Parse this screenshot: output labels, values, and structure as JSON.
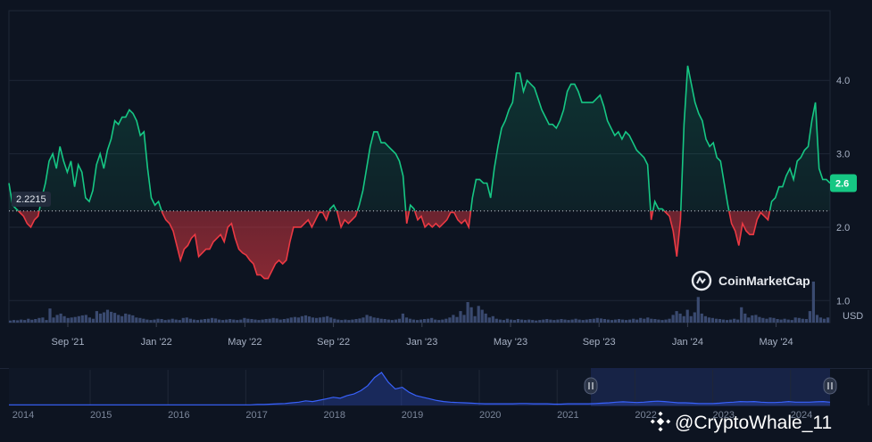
{
  "watermark": "CoinMarketCap",
  "credit": "@CryptoWhale_11",
  "colors": {
    "background": "#0d1421",
    "up": "#16c784",
    "down": "#ea3943",
    "volume": "#3a4a70",
    "navigator_line": "#3861fb"
  },
  "chart_data": {
    "type": "line",
    "title": "",
    "unit_label": "USD",
    "current_price_label": "2.6",
    "baseline": 2.2215,
    "baseline_label": "2.2215",
    "ylim": [
      0.7,
      4.95
    ],
    "y_ticks": [
      1.0,
      2.0,
      3.0,
      4.0
    ],
    "y_tick_labels": [
      "1.0",
      "2.0",
      "3.0",
      "4.0"
    ],
    "x_ticks": [
      "Sep '21",
      "Jan '22",
      "May '22",
      "Sep '22",
      "Jan '23",
      "May '23",
      "Sep '23",
      "Jan '24",
      "May '24"
    ],
    "grid": true,
    "series": [
      {
        "values": [
          2.6,
          2.3,
          2.25,
          2.2,
          2.15,
          2.05,
          2.0,
          2.1,
          2.15,
          2.4,
          2.6,
          2.9,
          3.0,
          2.8,
          3.1,
          2.9,
          2.75,
          2.9,
          2.55,
          2.85,
          2.75,
          2.4,
          2.35,
          2.5,
          2.85,
          3.0,
          2.8,
          3.05,
          3.2,
          3.45,
          3.4,
          3.5,
          3.5,
          3.6,
          3.55,
          3.45,
          3.25,
          3.3,
          2.8,
          2.4,
          2.3,
          2.35,
          2.2,
          2.1,
          2.05,
          1.95,
          1.75,
          1.55,
          1.7,
          1.75,
          1.85,
          1.9,
          1.6,
          1.65,
          1.7,
          1.7,
          1.8,
          1.85,
          1.9,
          1.8,
          2.0,
          2.05,
          1.85,
          1.7,
          1.65,
          1.62,
          1.55,
          1.5,
          1.35,
          1.35,
          1.3,
          1.3,
          1.4,
          1.5,
          1.55,
          1.5,
          1.55,
          1.8,
          2.0,
          2.0,
          2.0,
          2.05,
          2.1,
          2.0,
          2.1,
          2.2,
          2.2,
          2.1,
          2.25,
          2.3,
          2.2,
          2.0,
          2.1,
          2.05,
          2.1,
          2.15,
          2.3,
          2.5,
          2.8,
          3.1,
          3.3,
          3.3,
          3.15,
          3.15,
          3.1,
          3.05,
          3.0,
          2.9,
          2.7,
          2.05,
          2.3,
          2.25,
          2.1,
          2.15,
          2.0,
          2.05,
          2.0,
          2.05,
          2.0,
          2.05,
          2.1,
          2.2,
          2.2,
          2.1,
          2.05,
          2.1,
          2.0,
          2.4,
          2.65,
          2.65,
          2.6,
          2.6,
          2.4,
          2.8,
          3.1,
          3.35,
          3.45,
          3.6,
          3.7,
          4.1,
          4.1,
          3.85,
          4.0,
          3.95,
          3.9,
          3.75,
          3.6,
          3.5,
          3.4,
          3.4,
          3.35,
          3.45,
          3.6,
          3.85,
          3.95,
          3.95,
          3.85,
          3.7,
          3.7,
          3.7,
          3.7,
          3.75,
          3.8,
          3.65,
          3.45,
          3.35,
          3.25,
          3.3,
          3.2,
          3.3,
          3.25,
          3.15,
          3.05,
          3.0,
          2.95,
          2.85,
          2.1,
          2.35,
          2.25,
          2.25,
          2.2,
          2.15,
          1.95,
          1.6,
          2.1,
          3.4,
          4.2,
          3.95,
          3.7,
          3.55,
          3.45,
          3.2,
          3.1,
          3.15,
          2.95,
          2.9,
          2.6,
          2.3,
          2.05,
          1.95,
          1.75,
          2.05,
          1.95,
          1.9,
          1.9,
          2.1,
          2.2,
          2.15,
          2.1,
          2.35,
          2.4,
          2.55,
          2.55,
          2.7,
          2.8,
          2.65,
          2.9,
          2.95,
          3.05,
          3.1,
          3.45,
          3.7,
          2.8,
          2.65,
          2.65,
          2.6
        ]
      }
    ],
    "volume": [
      0.08,
      0.1,
      0.09,
      0.12,
      0.1,
      0.15,
      0.11,
      0.14,
      0.18,
      0.2,
      0.1,
      0.55,
      0.2,
      0.3,
      0.35,
      0.25,
      0.18,
      0.2,
      0.22,
      0.25,
      0.28,
      0.3,
      0.2,
      0.15,
      0.45,
      0.35,
      0.4,
      0.5,
      0.42,
      0.38,
      0.3,
      0.25,
      0.35,
      0.32,
      0.28,
      0.2,
      0.18,
      0.15,
      0.12,
      0.1,
      0.12,
      0.15,
      0.14,
      0.1,
      0.12,
      0.15,
      0.12,
      0.1,
      0.18,
      0.2,
      0.15,
      0.12,
      0.1,
      0.12,
      0.14,
      0.15,
      0.18,
      0.16,
      0.12,
      0.1,
      0.12,
      0.14,
      0.12,
      0.1,
      0.12,
      0.18,
      0.15,
      0.14,
      0.12,
      0.1,
      0.12,
      0.14,
      0.15,
      0.18,
      0.16,
      0.12,
      0.14,
      0.16,
      0.2,
      0.22,
      0.2,
      0.25,
      0.28,
      0.24,
      0.2,
      0.18,
      0.2,
      0.22,
      0.25,
      0.2,
      0.15,
      0.12,
      0.1,
      0.12,
      0.1,
      0.12,
      0.14,
      0.16,
      0.2,
      0.3,
      0.25,
      0.2,
      0.18,
      0.15,
      0.14,
      0.12,
      0.1,
      0.12,
      0.15,
      0.35,
      0.2,
      0.15,
      0.12,
      0.1,
      0.12,
      0.14,
      0.15,
      0.18,
      0.12,
      0.1,
      0.12,
      0.15,
      0.2,
      0.3,
      0.22,
      0.45,
      0.3,
      0.8,
      0.6,
      0.25,
      0.65,
      0.5,
      0.35,
      0.2,
      0.25,
      0.15,
      0.12,
      0.1,
      0.15,
      0.12,
      0.1,
      0.14,
      0.12,
      0.1,
      0.12,
      0.1,
      0.08,
      0.1,
      0.12,
      0.14,
      0.12,
      0.1,
      0.12,
      0.14,
      0.12,
      0.1,
      0.12,
      0.15,
      0.12,
      0.1,
      0.12,
      0.14,
      0.15,
      0.18,
      0.16,
      0.14,
      0.12,
      0.1,
      0.12,
      0.14,
      0.12,
      0.1,
      0.12,
      0.15,
      0.12,
      0.18,
      0.15,
      0.2,
      0.15,
      0.14,
      0.12,
      0.1,
      0.12,
      0.15,
      0.3,
      0.45,
      0.35,
      0.25,
      0.5,
      0.25,
      0.4,
      1.0,
      0.35,
      0.25,
      0.2,
      0.18,
      0.15,
      0.14,
      0.12,
      0.1,
      0.12,
      0.15,
      0.12,
      0.6,
      0.35,
      0.2,
      0.28,
      0.3,
      0.22,
      0.18,
      0.15,
      0.2,
      0.18,
      0.14,
      0.12,
      0.15,
      0.12,
      0.1,
      0.2,
      0.18,
      0.15,
      0.14,
      0.45,
      1.6,
      0.3,
      0.2,
      0.15,
      0.2
    ],
    "navigator": {
      "x_labels": [
        "2014",
        "2015",
        "2016",
        "2017",
        "2018",
        "2019",
        "2020",
        "2021",
        "2022",
        "2023",
        "2024"
      ],
      "values": [
        0.02,
        0.02,
        0.02,
        0.02,
        0.02,
        0.02,
        0.02,
        0.02,
        0.02,
        0.02,
        0.02,
        0.02,
        0.02,
        0.02,
        0.02,
        0.02,
        0.02,
        0.02,
        0.02,
        0.02,
        0.02,
        0.02,
        0.02,
        0.02,
        0.02,
        0.02,
        0.02,
        0.02,
        0.02,
        0.02,
        0.02,
        0.02,
        0.02,
        0.02,
        0.02,
        0.02,
        0.03,
        0.03,
        0.04,
        0.05,
        0.06,
        0.08,
        0.1,
        0.14,
        0.12,
        0.16,
        0.2,
        0.25,
        0.22,
        0.3,
        0.35,
        0.45,
        0.6,
        0.85,
        1.0,
        0.7,
        0.5,
        0.55,
        0.4,
        0.3,
        0.25,
        0.2,
        0.15,
        0.12,
        0.1,
        0.09,
        0.08,
        0.07,
        0.06,
        0.05,
        0.05,
        0.05,
        0.05,
        0.05,
        0.06,
        0.06,
        0.05,
        0.05,
        0.05,
        0.04,
        0.04,
        0.05,
        0.05,
        0.05,
        0.05,
        0.06,
        0.07,
        0.08,
        0.1,
        0.11,
        0.1,
        0.09,
        0.1,
        0.12,
        0.13,
        0.12,
        0.1,
        0.08,
        0.08,
        0.07,
        0.06,
        0.06,
        0.06,
        0.07,
        0.09,
        0.1,
        0.12,
        0.11,
        0.12,
        0.1,
        0.09,
        0.09,
        0.1,
        0.12,
        0.1,
        0.1,
        0.1,
        0.11,
        0.12,
        0.1
      ]
    }
  }
}
